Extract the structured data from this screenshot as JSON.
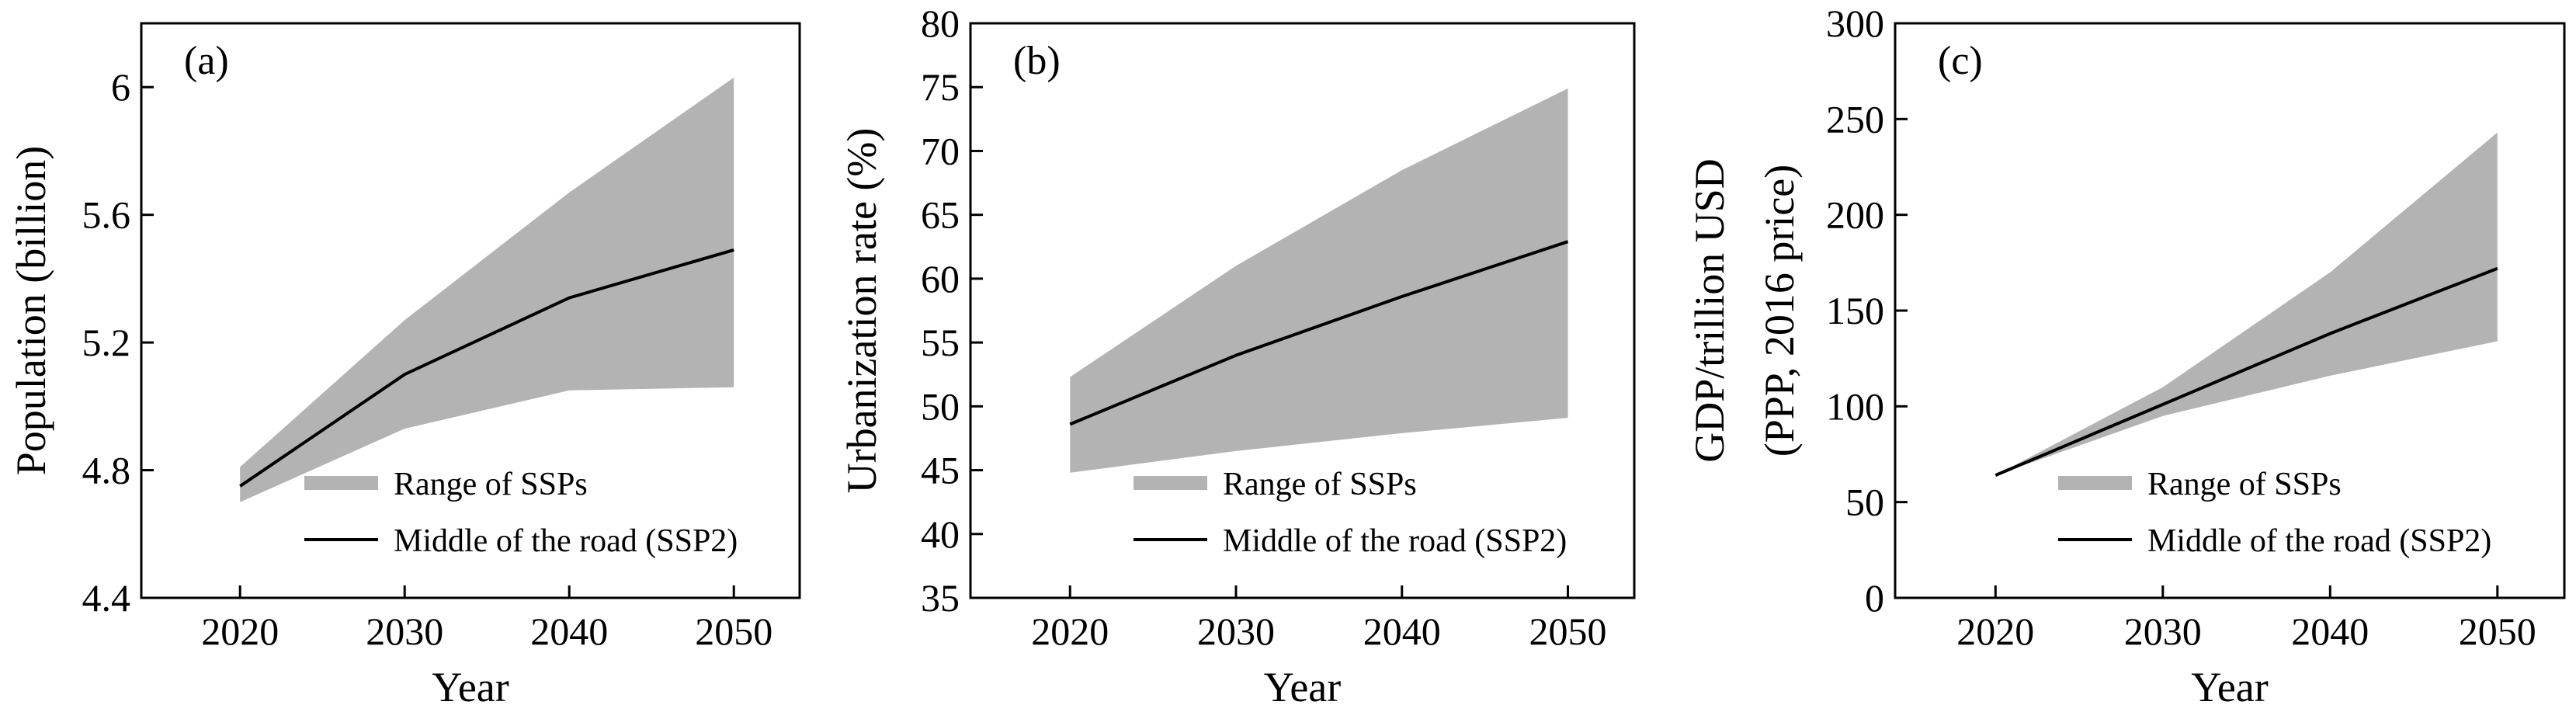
{
  "colors": {
    "band": "#b3b3b3",
    "line": "#000000"
  },
  "chart_data": [
    {
      "type": "area",
      "panel_label": "(a)",
      "xlabel": "Year",
      "ylabel": [
        "Population (billion)"
      ],
      "xlim": [
        2014,
        2054
      ],
      "ylim": [
        4.4,
        6.2
      ],
      "xticks": [
        2020,
        2030,
        2040,
        2050
      ],
      "yticks": [
        4.4,
        4.8,
        5.2,
        5.6,
        6.0
      ],
      "ytick_labels": [
        "4.4",
        "4.8",
        "5.2",
        "5.6",
        "6"
      ],
      "x": [
        2020,
        2030,
        2040,
        2050
      ],
      "band": {
        "name": "Range of SSPs",
        "upper": [
          4.81,
          5.27,
          5.67,
          6.03
        ],
        "lower": [
          4.7,
          4.93,
          5.05,
          5.06
        ]
      },
      "line": {
        "name": "Middle of the road (SSP2)",
        "values": [
          4.75,
          5.1,
          5.34,
          5.49
        ]
      }
    },
    {
      "type": "area",
      "panel_label": "(b)",
      "xlabel": "Year",
      "ylabel": [
        "Urbanization rate (%)"
      ],
      "xlim": [
        2014,
        2054
      ],
      "ylim": [
        35,
        80
      ],
      "xticks": [
        2020,
        2030,
        2040,
        2050
      ],
      "yticks": [
        35,
        40,
        45,
        50,
        55,
        60,
        65,
        70,
        75,
        80
      ],
      "ytick_labels": [
        "35",
        "40",
        "45",
        "50",
        "55",
        "60",
        "65",
        "70",
        "75",
        "80"
      ],
      "x": [
        2020,
        2030,
        2040,
        2050
      ],
      "band": {
        "name": "Range of SSPs",
        "upper": [
          52.3,
          61.0,
          68.5,
          74.9
        ],
        "lower": [
          44.8,
          46.5,
          47.9,
          49.1
        ]
      },
      "line": {
        "name": "Middle of the road (SSP2)",
        "values": [
          48.6,
          54.0,
          58.6,
          62.9
        ]
      }
    },
    {
      "type": "area",
      "panel_label": "(c)",
      "xlabel": "Year",
      "ylabel": [
        "GDP/trillion USD",
        "(PPP, 2016 price)"
      ],
      "xlim": [
        2014,
        2054
      ],
      "ylim": [
        0,
        300
      ],
      "xticks": [
        2020,
        2030,
        2040,
        2050
      ],
      "yticks": [
        0,
        50,
        100,
        150,
        200,
        250,
        300
      ],
      "ytick_labels": [
        "0",
        "50",
        "100",
        "150",
        "200",
        "250",
        "300"
      ],
      "x": [
        2020,
        2030,
        2040,
        2050
      ],
      "band": {
        "name": "Range of SSPs",
        "upper": [
          64,
          110,
          170,
          243
        ],
        "lower": [
          64,
          95,
          116,
          134
        ]
      },
      "line": {
        "name": "Middle of the road (SSP2)",
        "values": [
          64,
          101,
          138,
          172
        ]
      }
    }
  ]
}
